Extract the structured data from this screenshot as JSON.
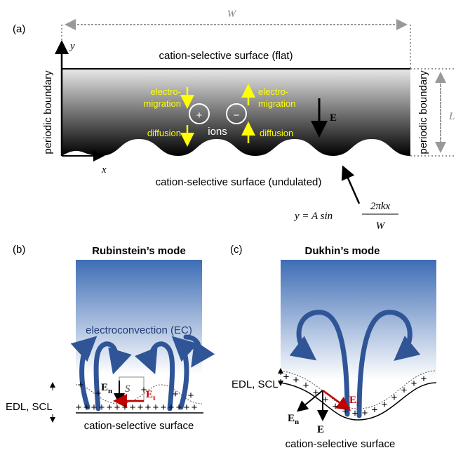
{
  "panel_a": {
    "label": "(a)",
    "width_label": "W",
    "y_axis": "y",
    "x_axis": "x",
    "top_surface": "cation-selective surface (flat)",
    "bottom_surface": "cation-selective surface (undulated)",
    "left_boundary": "periodic boundary",
    "right_boundary": "periodic boundary",
    "height_label": "L",
    "left_migration": [
      "electro-",
      "migration"
    ],
    "left_diffusion": "diffusion",
    "cation": "+",
    "anion": "−",
    "ions": "ions",
    "right_migration": [
      "electro-",
      "migration"
    ],
    "right_diffusion": "diffusion",
    "field": "E",
    "formula": {
      "lhs": "y = A sin",
      "numerator": "2πkx",
      "denominator": "W"
    }
  },
  "panel_b": {
    "label": "(b)",
    "title": "Rubinstein’s mode",
    "flow": "electroconvection (EC)",
    "normal": {
      "main": "E",
      "sub": "n"
    },
    "region": "S",
    "tangential": {
      "main": "E",
      "sub": "t"
    },
    "layer": "EDL, SCL",
    "surface": "cation-selective surface",
    "charge": "+"
  },
  "panel_c": {
    "label": "(c)",
    "title": "Dukhin’s mode",
    "layer": "EDL, SCL",
    "tangential": {
      "main": "E",
      "sub": "t"
    },
    "normal": {
      "main": "E",
      "sub": "n"
    },
    "field": "E",
    "surface": "cation-selective surface",
    "charge": "+"
  }
}
